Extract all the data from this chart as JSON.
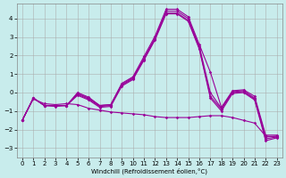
{
  "xlabel": "Windchill (Refroidissement éolien,°C)",
  "background_color": "#c8ecec",
  "line_color": "#990099",
  "grid_color": "#aaaaaa",
  "xlim": [
    -0.5,
    23.5
  ],
  "ylim": [
    -3.5,
    4.8
  ],
  "yticks": [
    -3,
    -2,
    -1,
    0,
    1,
    2,
    3,
    4
  ],
  "xticks": [
    0,
    1,
    2,
    3,
    4,
    5,
    6,
    7,
    8,
    9,
    10,
    11,
    12,
    13,
    14,
    15,
    16,
    17,
    18,
    19,
    20,
    21,
    22,
    23
  ],
  "x": [
    0,
    1,
    2,
    3,
    4,
    5,
    6,
    7,
    8,
    9,
    10,
    11,
    12,
    13,
    14,
    15,
    16,
    17,
    18,
    19,
    20,
    21,
    22,
    23
  ],
  "line1": [
    -1.5,
    -0.3,
    -0.7,
    -0.7,
    -0.7,
    0.0,
    -0.25,
    -0.7,
    -0.65,
    0.5,
    0.85,
    1.95,
    3.05,
    4.5,
    4.5,
    4.1,
    2.6,
    1.1,
    -0.8,
    0.1,
    0.15,
    -0.2,
    -2.3,
    -2.3
  ],
  "line2": [
    -1.5,
    -0.3,
    -0.7,
    -0.7,
    -0.7,
    -0.05,
    -0.3,
    -0.7,
    -0.65,
    0.45,
    0.8,
    1.85,
    2.95,
    4.4,
    4.4,
    4.0,
    2.5,
    0.0,
    -0.85,
    0.05,
    0.1,
    -0.3,
    -2.4,
    -2.35
  ],
  "line3": [
    -1.5,
    -0.3,
    -0.7,
    -0.7,
    -0.7,
    -0.1,
    -0.35,
    -0.75,
    -0.7,
    0.4,
    0.75,
    1.8,
    2.9,
    4.3,
    4.3,
    3.9,
    2.4,
    -0.2,
    -0.9,
    0.0,
    0.05,
    -0.35,
    -2.5,
    -2.4
  ],
  "line4": [
    -1.5,
    -0.3,
    -0.7,
    -0.75,
    -0.7,
    -0.15,
    -0.4,
    -0.8,
    -0.75,
    0.35,
    0.7,
    1.75,
    2.85,
    4.25,
    4.25,
    3.85,
    2.35,
    -0.3,
    -1.0,
    -0.05,
    0.0,
    -0.4,
    -2.6,
    -2.45
  ],
  "line5": [
    -1.5,
    -0.35,
    -0.6,
    -0.65,
    -0.6,
    -0.65,
    -0.85,
    -0.95,
    -1.05,
    -1.1,
    -1.15,
    -1.2,
    -1.3,
    -1.35,
    -1.35,
    -1.35,
    -1.3,
    -1.25,
    -1.25,
    -1.35,
    -1.5,
    -1.65,
    -2.35,
    -2.4
  ]
}
